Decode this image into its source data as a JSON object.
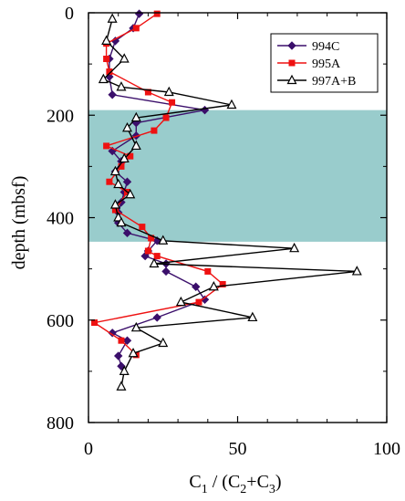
{
  "chart_data": {
    "type": "line",
    "xlabel": "C",
    "xlabel_sub1": "1",
    "xlabel_mid": " / (C",
    "xlabel_sub2": "2",
    "xlabel_plus": "+C",
    "xlabel_sub3": "3",
    "xlabel_end": ")",
    "ylabel": "depth (mbsf)",
    "xlim": [
      0,
      100
    ],
    "ylim": [
      800,
      0
    ],
    "y_inverted": true,
    "xticks": [
      0,
      50,
      100
    ],
    "yticks": [
      0,
      200,
      400,
      600,
      800
    ],
    "grid": false,
    "legend_position": "top-right",
    "shaded_band": {
      "y_from": 190,
      "y_to": 447,
      "color": "#99cccc"
    },
    "series": [
      {
        "name": "994C",
        "color": "#3b0f6b",
        "marker": "diamond",
        "points": [
          [
            17,
            2
          ],
          [
            15,
            30
          ],
          [
            9,
            55
          ],
          [
            7,
            90
          ],
          [
            7,
            125
          ],
          [
            8,
            160
          ],
          [
            39,
            190
          ],
          [
            16,
            215
          ],
          [
            16,
            240
          ],
          [
            8,
            270
          ],
          [
            11,
            290
          ],
          [
            9,
            310
          ],
          [
            13,
            330
          ],
          [
            12,
            350
          ],
          [
            11,
            370
          ],
          [
            10,
            390
          ],
          [
            10,
            410
          ],
          [
            13,
            430
          ],
          [
            23,
            445
          ],
          [
            20,
            465
          ],
          [
            19,
            475
          ],
          [
            26,
            490
          ],
          [
            26,
            505
          ],
          [
            36,
            535
          ],
          [
            39,
            560
          ],
          [
            23,
            595
          ],
          [
            8,
            625
          ],
          [
            13,
            640
          ],
          [
            10,
            670
          ],
          [
            11,
            690
          ]
        ]
      },
      {
        "name": "995A",
        "color": "#ee1111",
        "marker": "square",
        "points": [
          [
            23,
            2
          ],
          [
            16,
            30
          ],
          [
            6,
            60
          ],
          [
            6,
            90
          ],
          [
            7,
            115
          ],
          [
            20,
            155
          ],
          [
            28,
            175
          ],
          [
            26,
            205
          ],
          [
            22,
            230
          ],
          [
            6,
            260
          ],
          [
            14,
            280
          ],
          [
            11,
            300
          ],
          [
            7,
            330
          ],
          [
            13,
            350
          ],
          [
            9,
            385
          ],
          [
            18,
            418
          ],
          [
            21,
            440
          ],
          [
            20,
            465
          ],
          [
            23,
            475
          ],
          [
            40,
            505
          ],
          [
            45,
            530
          ],
          [
            37,
            565
          ],
          [
            2,
            605
          ],
          [
            11,
            640
          ],
          [
            16,
            668
          ]
        ]
      },
      {
        "name": "997A+B",
        "color": "#000000",
        "marker": "triangle",
        "points": [
          [
            8,
            12
          ],
          [
            6,
            55
          ],
          [
            12,
            90
          ],
          [
            5,
            130
          ],
          [
            11,
            145
          ],
          [
            27,
            155
          ],
          [
            48,
            180
          ],
          [
            16,
            205
          ],
          [
            13,
            225
          ],
          [
            16,
            260
          ],
          [
            12,
            285
          ],
          [
            9,
            310
          ],
          [
            10,
            335
          ],
          [
            14,
            355
          ],
          [
            9,
            375
          ],
          [
            10,
            400
          ],
          [
            11,
            410
          ],
          [
            25,
            445
          ],
          [
            69,
            460
          ],
          [
            22,
            490
          ],
          [
            90,
            505
          ],
          [
            42,
            535
          ],
          [
            31,
            565
          ],
          [
            55,
            595
          ],
          [
            16,
            615
          ],
          [
            25,
            645
          ],
          [
            15,
            665
          ],
          [
            12,
            700
          ],
          [
            11,
            730
          ]
        ]
      }
    ]
  }
}
